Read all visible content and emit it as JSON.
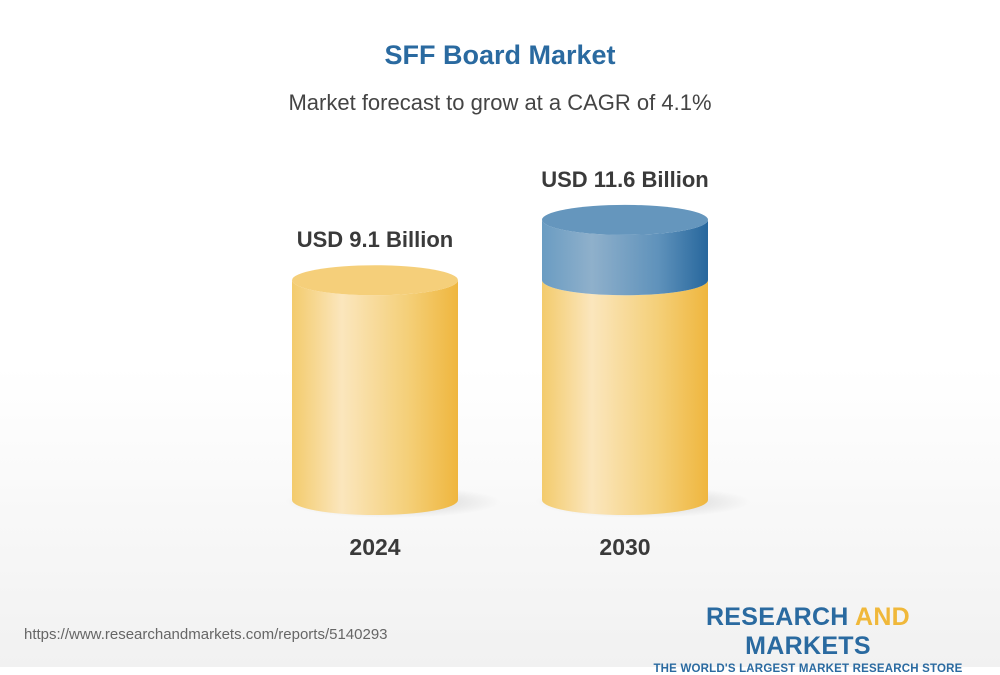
{
  "chart_data": {
    "type": "bar",
    "title": "SFF Board Market",
    "subtitle": "Market forecast to grow at a CAGR of 4.1%",
    "categories": [
      "2024",
      "2030"
    ],
    "values": [
      9.1,
      11.6
    ],
    "data_labels": [
      "USD 9.1 Billion",
      "USD 11.6 Billion"
    ],
    "unit": "USD Billion",
    "style": "3d-cylinder",
    "colors": {
      "base": "#f2c55c",
      "growth": "#3f78a8"
    }
  },
  "footer": {
    "url": "https://www.researchandmarkets.com/reports/5140293",
    "logo_part1": "RESEARCH ",
    "logo_part2": "AND",
    "logo_part3": " MARKETS",
    "tagline": "THE WORLD'S LARGEST MARKET RESEARCH STORE"
  }
}
